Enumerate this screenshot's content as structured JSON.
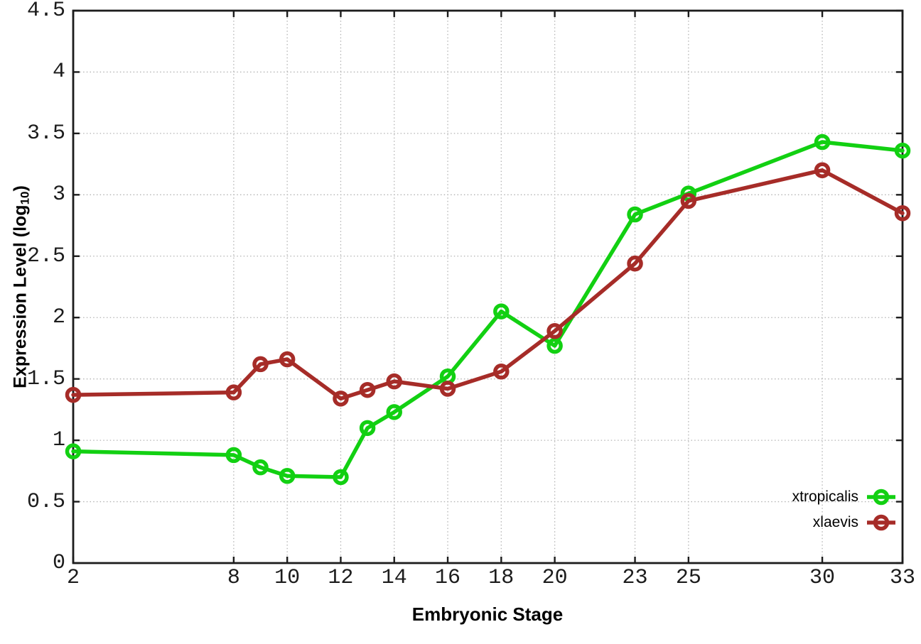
{
  "chart_data": {
    "type": "line",
    "title": "",
    "xlabel": "Embryonic Stage",
    "ylabel": "Expression Level (log10)",
    "ylabel_parts": {
      "prefix": "Expression Level (log",
      "sub": "10",
      "suffix": ")"
    },
    "xlim": [
      2,
      33
    ],
    "ylim": [
      0,
      4.5
    ],
    "x_ticks": [
      2,
      8,
      10,
      12,
      14,
      16,
      18,
      20,
      23,
      25,
      30,
      33
    ],
    "y_ticks": [
      0,
      0.5,
      1,
      1.5,
      2,
      2.5,
      3,
      3.5,
      4,
      4.5
    ],
    "grid": true,
    "grid_style": "dotted",
    "legend_position": "bottom-right-inside",
    "x": [
      2,
      8,
      9,
      10,
      12,
      13,
      14,
      16,
      18,
      20,
      23,
      25,
      30,
      33
    ],
    "series": [
      {
        "name": "xtropicalis",
        "color": "#12D012",
        "marker": "open-circle",
        "values": [
          0.91,
          0.88,
          0.78,
          0.71,
          0.7,
          1.1,
          1.23,
          1.52,
          2.05,
          1.77,
          2.84,
          3.01,
          3.43,
          3.36
        ]
      },
      {
        "name": "xlaevis",
        "color": "#A62C28",
        "marker": "open-circle",
        "values": [
          1.37,
          1.39,
          1.62,
          1.66,
          1.34,
          1.41,
          1.48,
          1.42,
          1.56,
          1.89,
          2.44,
          2.95,
          3.2,
          2.85
        ]
      }
    ],
    "colors": {
      "grid": "#b3b3b3",
      "axis": "#1c1c1c",
      "text": "#1c1c1c"
    }
  }
}
